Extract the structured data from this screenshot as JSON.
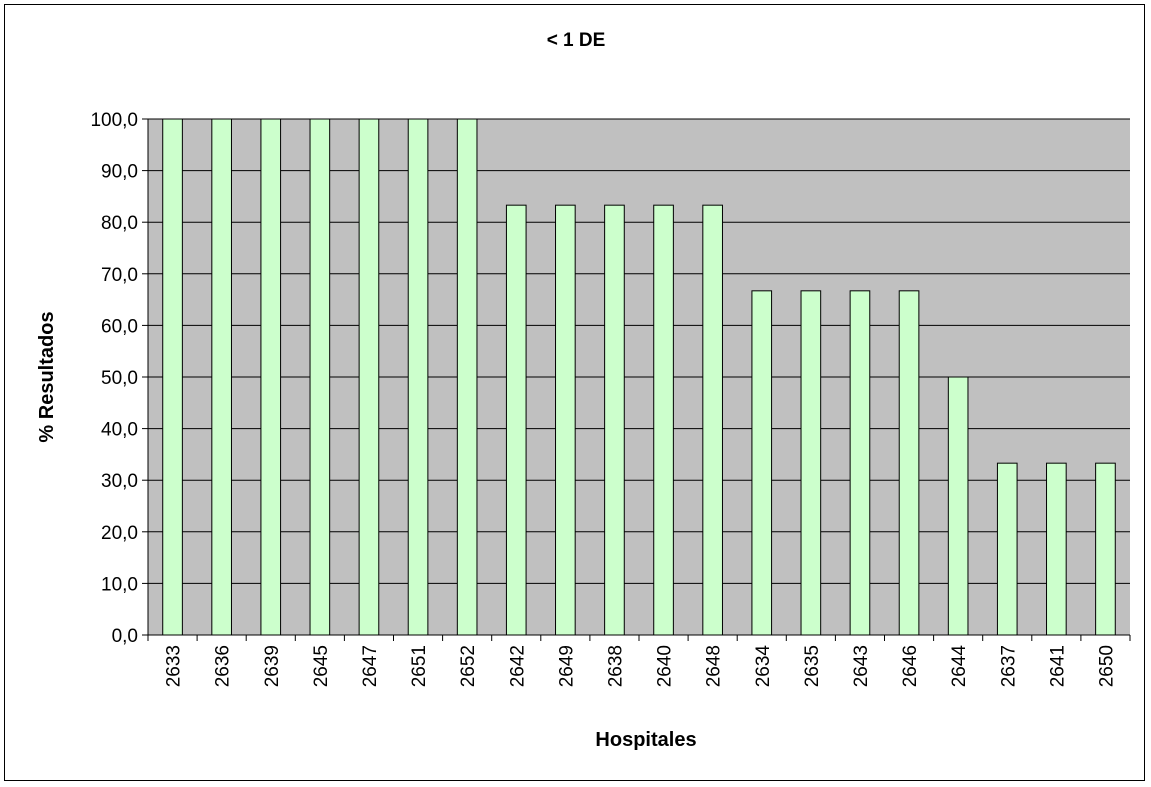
{
  "chart_data": {
    "type": "bar",
    "title": "< 1 DE",
    "xlabel": "Hospitales",
    "ylabel": "% Resultados",
    "ylim": [
      0,
      100
    ],
    "yticks": [
      "0,0",
      "10,0",
      "20,0",
      "30,0",
      "40,0",
      "50,0",
      "60,0",
      "70,0",
      "80,0",
      "90,0",
      "100,0"
    ],
    "categories": [
      "2633",
      "2636",
      "2639",
      "2645",
      "2647",
      "2651",
      "2652",
      "2642",
      "2649",
      "2638",
      "2640",
      "2648",
      "2634",
      "2635",
      "2643",
      "2646",
      "2644",
      "2637",
      "2641",
      "2650"
    ],
    "values": [
      100,
      100,
      100,
      100,
      100,
      100,
      100,
      83.3,
      83.3,
      83.3,
      83.3,
      83.3,
      66.7,
      66.7,
      66.7,
      66.7,
      50,
      33.3,
      33.3,
      33.3
    ],
    "grid": true,
    "legend": "none",
    "colors": {
      "bar_fill": "#ccffcc",
      "bar_stroke": "#000000",
      "plot_bg": "#c0c0c0",
      "gridline": "#000000"
    }
  }
}
